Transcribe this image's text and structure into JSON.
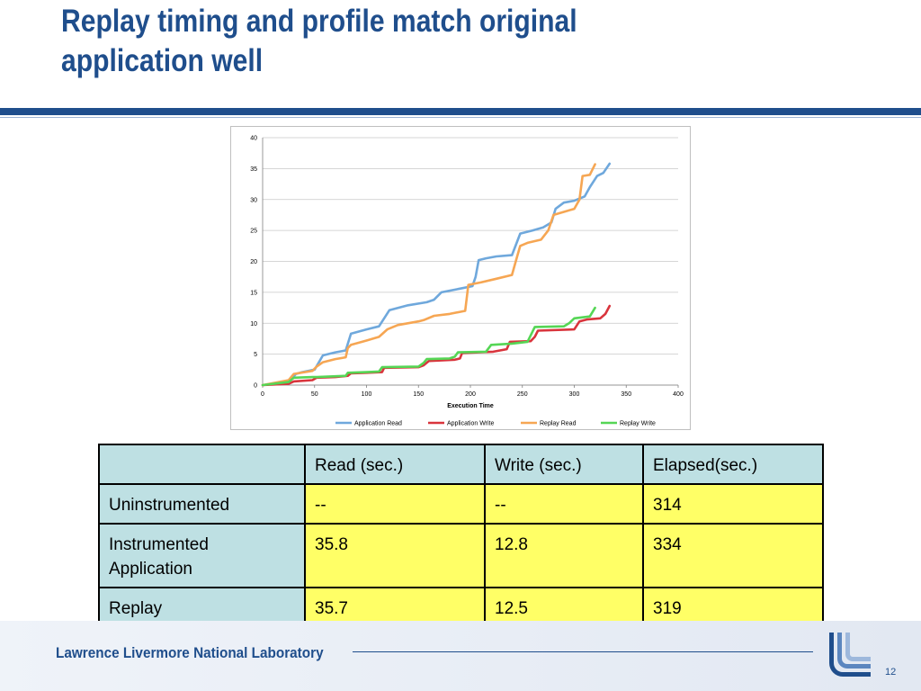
{
  "slide": {
    "title_line1": "Replay timing and profile match original",
    "title_line2": "application well",
    "footer": "Lawrence Livermore National Laboratory",
    "page_number": "12"
  },
  "colors": {
    "title": "#1F4E8C",
    "app_read": "#6FA8DC",
    "app_write": "#D9343C",
    "replay_read": "#F6A653",
    "replay_write": "#55D655",
    "table_header_bg": "#BEE0E3",
    "table_value_bg": "#FFFF66"
  },
  "chart_data": {
    "type": "line",
    "xlabel": "Execution Time",
    "ylabel": "",
    "xlim": [
      0,
      400
    ],
    "ylim": [
      0,
      40
    ],
    "x_ticks": [
      "0",
      "50",
      "100",
      "150",
      "200",
      "250",
      "300",
      "350",
      "400"
    ],
    "y_ticks": [
      "0",
      "5",
      "10",
      "15",
      "20",
      "25",
      "30",
      "35",
      "40"
    ],
    "grid": "horizontal",
    "legend_position": "bottom",
    "series": [
      {
        "name": "Application Read",
        "color": "#6FA8DC",
        "points": [
          [
            0,
            0
          ],
          [
            25,
            0.5
          ],
          [
            32,
            1.8
          ],
          [
            38,
            2.1
          ],
          [
            50,
            2.5
          ],
          [
            58,
            4.8
          ],
          [
            70,
            5.3
          ],
          [
            80,
            5.6
          ],
          [
            85,
            8.3
          ],
          [
            100,
            9.0
          ],
          [
            112,
            9.5
          ],
          [
            122,
            12.1
          ],
          [
            140,
            12.9
          ],
          [
            158,
            13.4
          ],
          [
            165,
            13.8
          ],
          [
            172,
            15.0
          ],
          [
            190,
            15.6
          ],
          [
            202,
            16.0
          ],
          [
            205,
            17.5
          ],
          [
            208,
            20.2
          ],
          [
            215,
            20.5
          ],
          [
            225,
            20.8
          ],
          [
            240,
            21.0
          ],
          [
            248,
            24.5
          ],
          [
            260,
            25.0
          ],
          [
            270,
            25.5
          ],
          [
            278,
            26.3
          ],
          [
            282,
            28.5
          ],
          [
            290,
            29.5
          ],
          [
            300,
            29.8
          ],
          [
            310,
            30.5
          ],
          [
            315,
            32.0
          ],
          [
            322,
            33.8
          ],
          [
            328,
            34.3
          ],
          [
            334,
            35.8
          ]
        ]
      },
      {
        "name": "Application Write",
        "color": "#D9343C",
        "points": [
          [
            0,
            0
          ],
          [
            25,
            0.2
          ],
          [
            30,
            0.6
          ],
          [
            48,
            0.8
          ],
          [
            52,
            1.2
          ],
          [
            70,
            1.3
          ],
          [
            82,
            1.5
          ],
          [
            85,
            1.9
          ],
          [
            100,
            2.0
          ],
          [
            115,
            2.1
          ],
          [
            117,
            2.8
          ],
          [
            150,
            2.9
          ],
          [
            155,
            3.2
          ],
          [
            160,
            3.9
          ],
          [
            185,
            4.1
          ],
          [
            190,
            4.3
          ],
          [
            192,
            5.2
          ],
          [
            222,
            5.4
          ],
          [
            235,
            5.8
          ],
          [
            238,
            7.0
          ],
          [
            258,
            7.1
          ],
          [
            262,
            7.8
          ],
          [
            265,
            8.8
          ],
          [
            300,
            9.0
          ],
          [
            305,
            10.3
          ],
          [
            312,
            10.6
          ],
          [
            325,
            10.8
          ],
          [
            330,
            11.5
          ],
          [
            334,
            12.8
          ]
        ]
      },
      {
        "name": "Replay Read",
        "color": "#F6A653",
        "points": [
          [
            0,
            0
          ],
          [
            25,
            0.8
          ],
          [
            30,
            1.8
          ],
          [
            48,
            2.3
          ],
          [
            52,
            3.0
          ],
          [
            58,
            3.7
          ],
          [
            70,
            4.2
          ],
          [
            80,
            4.5
          ],
          [
            82,
            6.0
          ],
          [
            85,
            6.5
          ],
          [
            100,
            7.2
          ],
          [
            112,
            7.8
          ],
          [
            120,
            9.0
          ],
          [
            130,
            9.7
          ],
          [
            150,
            10.3
          ],
          [
            155,
            10.5
          ],
          [
            165,
            11.2
          ],
          [
            180,
            11.5
          ],
          [
            195,
            12.0
          ],
          [
            198,
            16.2
          ],
          [
            210,
            16.6
          ],
          [
            225,
            17.2
          ],
          [
            240,
            17.8
          ],
          [
            245,
            20.8
          ],
          [
            248,
            22.5
          ],
          [
            255,
            23.0
          ],
          [
            268,
            23.5
          ],
          [
            275,
            25.0
          ],
          [
            280,
            27.5
          ],
          [
            290,
            28.0
          ],
          [
            300,
            28.5
          ],
          [
            305,
            30.0
          ],
          [
            308,
            33.8
          ],
          [
            315,
            34.0
          ],
          [
            320,
            35.7
          ]
        ]
      },
      {
        "name": "Replay Write",
        "color": "#55D655",
        "points": [
          [
            0,
            0
          ],
          [
            25,
            0.5
          ],
          [
            30,
            1.2
          ],
          [
            48,
            1.3
          ],
          [
            52,
            1.3
          ],
          [
            80,
            1.5
          ],
          [
            82,
            2.0
          ],
          [
            100,
            2.1
          ],
          [
            112,
            2.2
          ],
          [
            115,
            2.9
          ],
          [
            150,
            3.0
          ],
          [
            155,
            3.6
          ],
          [
            158,
            4.2
          ],
          [
            180,
            4.3
          ],
          [
            185,
            4.6
          ],
          [
            188,
            5.3
          ],
          [
            215,
            5.4
          ],
          [
            220,
            6.5
          ],
          [
            240,
            6.7
          ],
          [
            255,
            7.0
          ],
          [
            262,
            9.4
          ],
          [
            290,
            9.5
          ],
          [
            295,
            10.0
          ],
          [
            300,
            10.8
          ],
          [
            315,
            11.1
          ],
          [
            320,
            12.5
          ]
        ]
      }
    ]
  },
  "table": {
    "header": [
      "",
      "Read (sec.)",
      "Write (sec.)",
      "Elapsed(sec.)"
    ],
    "rows": [
      {
        "label": "Uninstrumented",
        "read": "--",
        "write": "--",
        "elapsed": "314"
      },
      {
        "label": "Instrumented Application",
        "read": "35.8",
        "write": "12.8",
        "elapsed": "334"
      },
      {
        "label": "Replay",
        "read": "35.7",
        "write": "12.5",
        "elapsed": "319"
      }
    ]
  }
}
